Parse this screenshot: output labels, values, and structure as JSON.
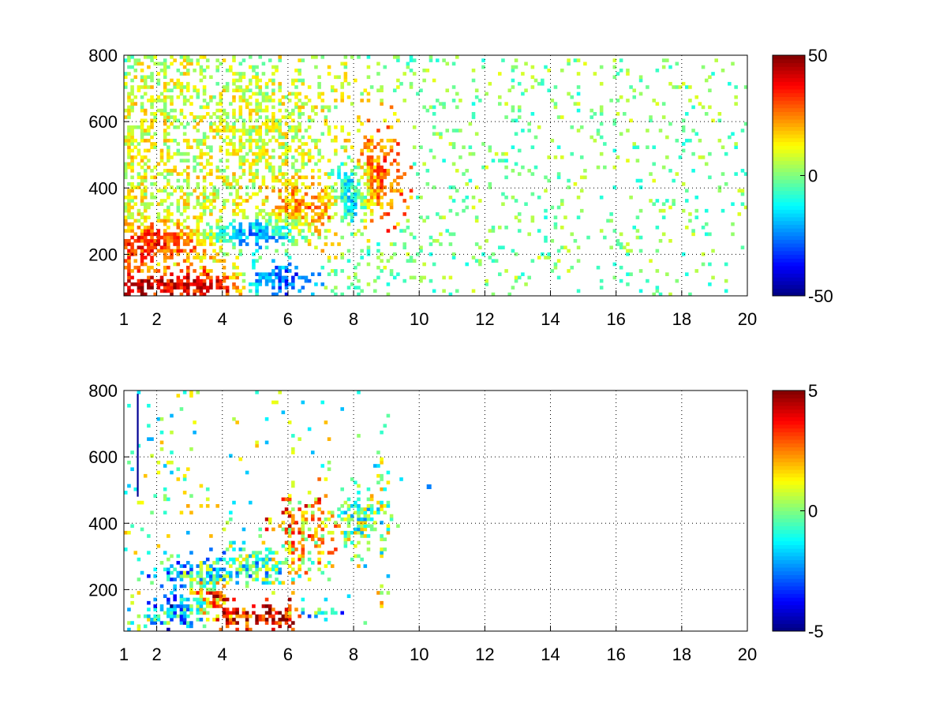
{
  "chart_data": [
    {
      "type": "heatmap",
      "title": "",
      "xlabel": "",
      "ylabel": "",
      "xlim": [
        1,
        20
      ],
      "ylim": [
        75,
        800
      ],
      "xticks": [
        1,
        2,
        4,
        6,
        8,
        10,
        12,
        14,
        16,
        18,
        20
      ],
      "yticks": [
        200,
        400,
        600,
        800
      ],
      "xgrid": [
        2,
        4,
        6,
        8,
        10,
        12,
        14,
        16,
        18,
        20
      ],
      "grid": true,
      "colormap": "jet",
      "colorbar": {
        "min": -50,
        "max": 50,
        "ticks": [
          50,
          0,
          -50
        ]
      },
      "blobs": [
        {
          "x": 2.2,
          "y": 235,
          "sx": 0.9,
          "sy": 30,
          "value": 40,
          "density": 0.95
        },
        {
          "x": 3.0,
          "y": 250,
          "sx": 0.8,
          "sy": 25,
          "value": 42,
          "density": 0.95
        },
        {
          "x": 2.8,
          "y": 110,
          "sx": 1.2,
          "sy": 25,
          "value": 45,
          "density": 0.95
        },
        {
          "x": 4.2,
          "y": 255,
          "sx": 0.9,
          "sy": 22,
          "value": -40,
          "density": 0.95
        },
        {
          "x": 5.4,
          "y": 270,
          "sx": 0.8,
          "sy": 30,
          "value": -38,
          "density": 0.9
        },
        {
          "x": 5.6,
          "y": 125,
          "sx": 0.6,
          "sy": 30,
          "value": -35,
          "density": 0.8
        },
        {
          "x": 6.3,
          "y": 320,
          "sx": 0.7,
          "sy": 60,
          "value": 30,
          "density": 0.85
        },
        {
          "x": 6.9,
          "y": 360,
          "sx": 0.5,
          "sy": 40,
          "value": 25,
          "density": 0.8
        },
        {
          "x": 7.9,
          "y": 390,
          "sx": 0.35,
          "sy": 55,
          "value": -35,
          "density": 0.9
        },
        {
          "x": 8.6,
          "y": 440,
          "sx": 0.5,
          "sy": 80,
          "value": 28,
          "density": 0.85
        },
        {
          "x": 3.0,
          "y": 400,
          "sx": 1.2,
          "sy": 150,
          "value": 10,
          "density": 0.45
        },
        {
          "x": 5.0,
          "y": 550,
          "sx": 1.6,
          "sy": 180,
          "value": 8,
          "density": 0.5
        }
      ],
      "noise": {
        "xmax": 20,
        "density_near": 0.55,
        "density_far": 0.07,
        "value_spread": 15
      }
    },
    {
      "type": "heatmap",
      "title": "",
      "xlabel": "",
      "ylabel": "",
      "xlim": [
        1,
        20
      ],
      "ylim": [
        75,
        800
      ],
      "xticks": [
        1,
        2,
        4,
        6,
        8,
        10,
        12,
        14,
        16,
        18,
        20
      ],
      "yticks": [
        200,
        400,
        600,
        800
      ],
      "xgrid": [
        2,
        4,
        6,
        8,
        10,
        12,
        14,
        16,
        18,
        20
      ],
      "grid": true,
      "colormap": "jet",
      "colorbar": {
        "min": -5,
        "max": 5,
        "ticks": [
          5,
          0,
          -5
        ]
      },
      "blobs": [
        {
          "x": 3.4,
          "y": 245,
          "sx": 1.0,
          "sy": 30,
          "value": -1.5,
          "density": 0.75
        },
        {
          "x": 5.0,
          "y": 275,
          "sx": 0.9,
          "sy": 35,
          "value": -0.8,
          "density": 0.7
        },
        {
          "x": 2.9,
          "y": 140,
          "sx": 0.6,
          "sy": 35,
          "value": -4.5,
          "density": 0.8
        },
        {
          "x": 3.6,
          "y": 175,
          "sx": 0.5,
          "sy": 35,
          "value": 4.5,
          "density": 0.7
        },
        {
          "x": 4.5,
          "y": 120,
          "sx": 0.7,
          "sy": 20,
          "value": 4.0,
          "density": 0.8
        },
        {
          "x": 5.7,
          "y": 115,
          "sx": 0.4,
          "sy": 25,
          "value": 4.8,
          "density": 0.85
        },
        {
          "x": 6.5,
          "y": 370,
          "sx": 0.7,
          "sy": 70,
          "value": 2.0,
          "density": 0.6
        },
        {
          "x": 8.1,
          "y": 400,
          "sx": 0.4,
          "sy": 60,
          "value": -0.3,
          "density": 0.75
        },
        {
          "x": 8.9,
          "y": 430,
          "sx": 0.12,
          "sy": 120,
          "value": 0.2,
          "density": 0.65
        },
        {
          "x": 2.5,
          "y": 120,
          "sx": 0.8,
          "sy": 20,
          "value": 0.3,
          "density": 0.7
        },
        {
          "x": 6.9,
          "y": 130,
          "sx": 0.5,
          "sy": 10,
          "value": -1.5,
          "density": 0.6
        }
      ],
      "lines": [
        {
          "x": 1.42,
          "y0": 480,
          "y1": 790,
          "value": -4.8
        }
      ],
      "points": [
        {
          "x": 10.3,
          "y": 510,
          "value": -2.5
        }
      ],
      "noise": {
        "xmax": 9.5,
        "density_near": 0.08,
        "density_far": 0.01,
        "value_spread": 3
      }
    }
  ]
}
